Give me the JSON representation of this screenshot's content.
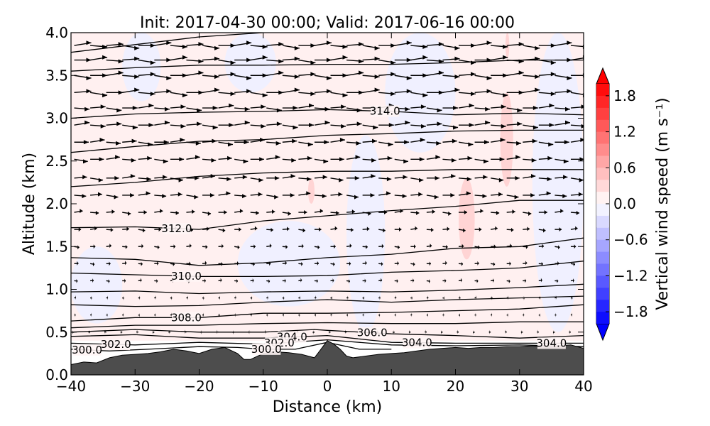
{
  "chart_data": {
    "type": "contour",
    "title": "Init: 2017-04-30 00:00; Valid: 2017-06-16 00:00",
    "xlabel": "Distance (km)",
    "ylabel": "Altitude (km)",
    "xlim": [
      -40,
      40
    ],
    "ylim": [
      0,
      4
    ],
    "xticks": [
      -40,
      -30,
      -20,
      -10,
      0,
      10,
      20,
      30,
      40
    ],
    "xtick_labels": [
      "−40",
      "−30",
      "−20",
      "−10",
      "0",
      "10",
      "20",
      "30",
      "40"
    ],
    "yticks": [
      0.0,
      0.5,
      1.0,
      1.5,
      2.0,
      2.5,
      3.0,
      3.5,
      4.0
    ],
    "ytick_labels": [
      "0.0",
      "0.5",
      "1.0",
      "1.5",
      "2.0",
      "2.5",
      "3.0",
      "3.5",
      "4.0"
    ],
    "colorbar": {
      "label": "Vertical wind speed (m s⁻¹)",
      "range": [
        -2.0,
        2.0
      ],
      "ticks": [
        1.8,
        1.2,
        0.6,
        0.0,
        -0.6,
        -1.2,
        -1.8
      ],
      "tick_labels": [
        "1.8",
        "1.2",
        "0.6",
        "0.0",
        "−0.6",
        "−1.2",
        "−1.8"
      ],
      "cmap": "bwr",
      "colors": {
        "low": "#0000ff",
        "mid": "#ffffff",
        "high": "#ff0000"
      }
    },
    "terrain": {
      "color": "#4d4d4d",
      "x": [
        -40,
        -38,
        -36,
        -34,
        -32,
        -30,
        -28,
        -26,
        -24,
        -22,
        -20,
        -18,
        -16,
        -14,
        -13,
        -12,
        -10,
        -8,
        -6,
        -4,
        -2,
        -1,
        0,
        1,
        2,
        3,
        4,
        6,
        8,
        10,
        12,
        14,
        16,
        18,
        20,
        22,
        24,
        26,
        28,
        30,
        32,
        34,
        36,
        38,
        40
      ],
      "y": [
        0.12,
        0.15,
        0.14,
        0.2,
        0.23,
        0.24,
        0.25,
        0.27,
        0.3,
        0.28,
        0.25,
        0.3,
        0.32,
        0.25,
        0.18,
        0.18,
        0.25,
        0.27,
        0.26,
        0.24,
        0.2,
        0.3,
        0.4,
        0.36,
        0.3,
        0.22,
        0.2,
        0.22,
        0.24,
        0.25,
        0.26,
        0.28,
        0.3,
        0.31,
        0.32,
        0.31,
        0.32,
        0.32,
        0.33,
        0.33,
        0.34,
        0.33,
        0.34,
        0.35,
        0.31
      ]
    },
    "wind_patches": [
      {
        "sign": "positive",
        "x": [
          -40,
          40
        ],
        "y": [
          0.4,
          4.0
        ],
        "value": 0.15
      },
      {
        "sign": "negative",
        "x": [
          -40,
          -32
        ],
        "y": [
          0.6,
          1.5
        ],
        "value": -0.15
      },
      {
        "sign": "negative",
        "x": [
          -32,
          -26
        ],
        "y": [
          3.2,
          4.0
        ],
        "value": -0.15
      },
      {
        "sign": "negative",
        "x": [
          -16,
          -8
        ],
        "y": [
          3.3,
          4.0
        ],
        "value": -0.15
      },
      {
        "sign": "negative",
        "x": [
          -14,
          2
        ],
        "y": [
          0.8,
          1.8
        ],
        "value": -0.15
      },
      {
        "sign": "negative",
        "x": [
          3,
          9
        ],
        "y": [
          0.5,
          2.8
        ],
        "value": -0.15
      },
      {
        "sign": "negative",
        "x": [
          9,
          20
        ],
        "y": [
          2.6,
          4.0
        ],
        "value": -0.15
      },
      {
        "sign": "negative",
        "x": [
          32,
          40
        ],
        "y": [
          0.5,
          4.0
        ],
        "value": -0.15
      },
      {
        "sign": "positive",
        "x": [
          -3,
          -2
        ],
        "y": [
          2.0,
          2.3
        ],
        "value": 0.45
      },
      {
        "sign": "positive",
        "x": [
          20.5,
          23
        ],
        "y": [
          1.35,
          2.3
        ],
        "value": 0.45
      },
      {
        "sign": "positive",
        "x": [
          27,
          29
        ],
        "y": [
          2.2,
          3.3
        ],
        "value": 0.45
      },
      {
        "sign": "positive",
        "x": [
          27.8,
          28.4
        ],
        "y": [
          3.7,
          4.0
        ],
        "value": 0.45
      }
    ],
    "contours": [
      {
        "label": "314.0",
        "label_x": 9,
        "points": [
          [
            -40,
            3.0
          ],
          [
            -30,
            3.05
          ],
          [
            -20,
            3.07
          ],
          [
            -10,
            3.08
          ],
          [
            0,
            3.1
          ],
          [
            10,
            3.08
          ],
          [
            20,
            3.04
          ],
          [
            30,
            3.06
          ],
          [
            40,
            3.04
          ]
        ]
      },
      {
        "label": "312.0",
        "label_x": -23.5,
        "points": [
          [
            -40,
            1.72
          ],
          [
            -30,
            1.73
          ],
          [
            -20,
            1.7
          ],
          [
            -10,
            1.8
          ],
          [
            0,
            1.86
          ],
          [
            10,
            1.92
          ],
          [
            20,
            1.97
          ],
          [
            30,
            2.04
          ],
          [
            40,
            2.04
          ]
        ]
      },
      {
        "label": "310.0",
        "label_x": -22,
        "points": [
          [
            -40,
            1.19
          ],
          [
            -30,
            1.17
          ],
          [
            -20,
            1.15
          ],
          [
            -10,
            1.15
          ],
          [
            0,
            1.16
          ],
          [
            10,
            1.2
          ],
          [
            20,
            1.22
          ],
          [
            30,
            1.25
          ],
          [
            40,
            1.33
          ]
        ]
      },
      {
        "label": "308.0",
        "label_x": -22,
        "points": [
          [
            -40,
            0.63
          ],
          [
            -30,
            0.67
          ],
          [
            -20,
            0.67
          ],
          [
            -10,
            0.72
          ],
          [
            0,
            0.72
          ],
          [
            10,
            0.73
          ],
          [
            20,
            0.75
          ],
          [
            30,
            0.77
          ],
          [
            40,
            0.82
          ]
        ]
      },
      {
        "label": "306.0",
        "label_x": 7,
        "points": [
          [
            -40,
            0.5
          ],
          [
            -30,
            0.53
          ],
          [
            -20,
            0.5
          ],
          [
            -10,
            0.5
          ],
          [
            -2,
            0.53
          ],
          [
            0,
            0.52
          ],
          [
            10,
            0.48
          ],
          [
            20,
            0.46
          ],
          [
            30,
            0.43
          ],
          [
            40,
            0.46
          ]
        ]
      },
      {
        "label": "304.0",
        "label_x": 14,
        "points": [
          [
            -40,
            0.45
          ],
          [
            -30,
            0.47
          ],
          [
            -20,
            0.43
          ],
          [
            -10,
            0.43
          ],
          [
            0,
            0.46
          ],
          [
            10,
            0.38
          ],
          [
            20,
            0.37
          ],
          [
            30,
            0.37
          ],
          [
            40,
            0.37
          ]
        ]
      },
      {
        "label": "304.0",
        "label_x": 35,
        "points": []
      },
      {
        "label": "304.0",
        "label_x": -5.5,
        "points": []
      },
      {
        "label": "302.0",
        "label_x": -33,
        "points": [
          [
            -40,
            0.37
          ],
          [
            -30,
            0.35
          ],
          [
            -20,
            0.38
          ],
          [
            -10,
            0.36
          ],
          [
            0,
            0.41
          ],
          [
            10,
            0.35
          ],
          [
            20,
            0.34
          ],
          [
            30,
            0.35
          ],
          [
            40,
            0.33
          ]
        ]
      },
      {
        "label": "302.0",
        "label_x": -7.5,
        "points": []
      },
      {
        "label": "300.0",
        "label_x": -37.5,
        "points": [
          [
            -40,
            0.3
          ],
          [
            -34,
            0.28
          ],
          [
            -28,
            0.3
          ],
          [
            -20,
            0.33
          ],
          [
            -14,
            0.32
          ],
          [
            -10,
            0.3
          ],
          [
            -5,
            0.3
          ],
          [
            0,
            0.38
          ],
          [
            5,
            0.3
          ],
          [
            10,
            0.3
          ]
        ]
      },
      {
        "label": "300.0",
        "label_x": -9.5,
        "points": []
      },
      {
        "label": "",
        "label_x": null,
        "points": [
          [
            -40,
            1.37
          ],
          [
            -30,
            1.35
          ],
          [
            -20,
            1.28
          ],
          [
            -10,
            1.31
          ],
          [
            0,
            1.37
          ],
          [
            10,
            1.41
          ],
          [
            20,
            1.48
          ],
          [
            30,
            1.5
          ],
          [
            40,
            1.6
          ]
        ]
      },
      {
        "label": "",
        "label_x": null,
        "points": [
          [
            -40,
            0.97
          ],
          [
            -30,
            0.98
          ],
          [
            -20,
            0.95
          ],
          [
            -10,
            0.97
          ],
          [
            0,
            0.98
          ],
          [
            10,
            0.97
          ],
          [
            20,
            0.99
          ],
          [
            30,
            1.02
          ],
          [
            40,
            1.06
          ]
        ]
      },
      {
        "label": "",
        "label_x": null,
        "points": [
          [
            -40,
            0.82
          ],
          [
            -30,
            0.8
          ],
          [
            -20,
            0.81
          ],
          [
            -10,
            0.85
          ],
          [
            0,
            0.88
          ],
          [
            10,
            0.85
          ],
          [
            20,
            0.88
          ],
          [
            30,
            0.9
          ],
          [
            40,
            0.92
          ]
        ]
      },
      {
        "label": "",
        "label_x": null,
        "points": [
          [
            -40,
            0.55
          ],
          [
            -30,
            0.58
          ],
          [
            -20,
            0.58
          ],
          [
            -10,
            0.6
          ],
          [
            0,
            0.61
          ],
          [
            10,
            0.6
          ],
          [
            20,
            0.6
          ],
          [
            30,
            0.62
          ],
          [
            40,
            0.62
          ]
        ]
      },
      {
        "label": "",
        "label_x": null,
        "points": [
          [
            -40,
            2.2
          ],
          [
            -30,
            2.25
          ],
          [
            -20,
            2.32
          ],
          [
            -10,
            2.36
          ],
          [
            0,
            2.38
          ],
          [
            10,
            2.38
          ],
          [
            20,
            2.4
          ],
          [
            30,
            2.4
          ],
          [
            40,
            2.4
          ]
        ]
      },
      {
        "label": "",
        "label_x": null,
        "points": [
          [
            -40,
            2.6
          ],
          [
            -30,
            2.67
          ],
          [
            -20,
            2.73
          ],
          [
            -10,
            2.75
          ],
          [
            0,
            2.8
          ],
          [
            10,
            2.82
          ],
          [
            20,
            2.85
          ],
          [
            30,
            2.86
          ],
          [
            40,
            2.86
          ]
        ]
      },
      {
        "label": "",
        "label_x": null,
        "points": [
          [
            -40,
            3.55
          ],
          [
            -30,
            3.59
          ],
          [
            -20,
            3.62
          ],
          [
            -10,
            3.62
          ],
          [
            0,
            3.63
          ],
          [
            10,
            3.63
          ],
          [
            20,
            3.65
          ],
          [
            30,
            3.68
          ],
          [
            40,
            3.68
          ]
        ]
      },
      {
        "label": "",
        "label_x": null,
        "points": [
          [
            -40,
            3.77
          ],
          [
            -20,
            3.95
          ],
          [
            -10,
            4.0
          ]
        ]
      }
    ],
    "vectors": {
      "x_start": -39.5,
      "x_step": 2.5,
      "count_x": 32,
      "levels": [
        {
          "y": 3.85,
          "u": 1.0
        },
        {
          "y": 3.68,
          "u": 1.0
        },
        {
          "y": 3.5,
          "u": 1.0
        },
        {
          "y": 3.3,
          "u": 1.0
        },
        {
          "y": 3.12,
          "u": 0.9
        },
        {
          "y": 2.92,
          "u": 0.9
        },
        {
          "y": 2.72,
          "u": 0.85
        },
        {
          "y": 2.52,
          "u": 0.8
        },
        {
          "y": 2.3,
          "u": 0.75
        },
        {
          "y": 2.1,
          "u": 0.7
        },
        {
          "y": 1.9,
          "u": 0.5
        },
        {
          "y": 1.7,
          "u": 0.4
        },
        {
          "y": 1.5,
          "u": 0.3
        },
        {
          "y": 1.3,
          "u": 0.25
        },
        {
          "y": 1.1,
          "u": 0.2
        },
        {
          "y": 0.9,
          "u": 0.1
        },
        {
          "y": 0.7,
          "u": 0.08
        },
        {
          "y": 0.5,
          "u": -0.1
        }
      ]
    }
  }
}
